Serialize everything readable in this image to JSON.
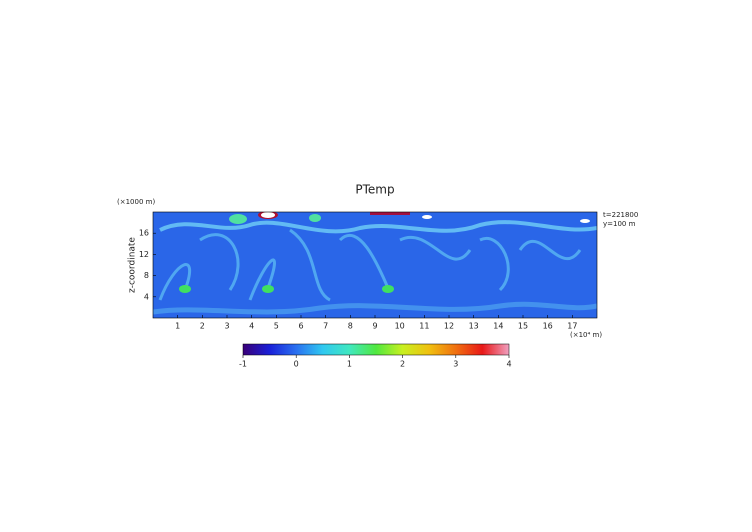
{
  "chart_data": {
    "type": "heatmap",
    "title": "PTemp",
    "y_label": "z-coordinate",
    "y_unit": "(×1000 m)",
    "x_unit": "(×10⁴ m)",
    "annotations": [
      "t=221800",
      "y=100 m"
    ],
    "xlim": [
      0,
      18
    ],
    "xticks": [
      1,
      2,
      3,
      4,
      5,
      6,
      7,
      8,
      9,
      10,
      11,
      12,
      13,
      14,
      15,
      16,
      17
    ],
    "ylim": [
      0,
      20
    ],
    "yticks": [
      4,
      8,
      12,
      16
    ],
    "colorbar": {
      "lim": [
        -1,
        4
      ],
      "ticks": [
        -1,
        0,
        1,
        2,
        3,
        4
      ],
      "colors": [
        "#3a0078",
        "#1a20d8",
        "#2a70f0",
        "#30c8f0",
        "#40e8c0",
        "#50e840",
        "#c8f020",
        "#f0c010",
        "#f07010",
        "#e81818",
        "#f0a0c0"
      ]
    }
  }
}
